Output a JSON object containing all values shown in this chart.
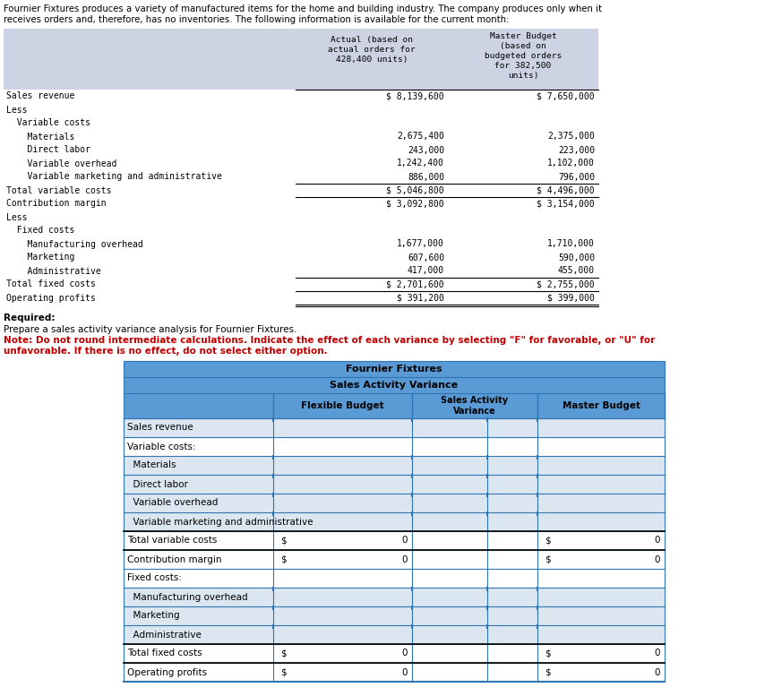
{
  "header_line1": "Fournier Fixtures produces a variety of manufactured items for the home and building industry. The company produces only when it",
  "header_line2": "receives orders and, therefore, has no inventories. The following information is available for the current month:",
  "top_table": {
    "col_header1": "Actual (based on\nactual orders for\n428,400 units)",
    "col_header2": "Master Budget\n(based on\nbudgeted orders\nfor 382,500\nunits)",
    "rows": [
      [
        "Sales revenue",
        "$ 8,139,600",
        "$ 7,650,000",
        true,
        false
      ],
      [
        "Less",
        "",
        "",
        false,
        false
      ],
      [
        "  Variable costs",
        "",
        "",
        false,
        false
      ],
      [
        "    Materials",
        "2,675,400",
        "2,375,000",
        false,
        false
      ],
      [
        "    Direct labor",
        "243,000",
        "223,000",
        false,
        false
      ],
      [
        "    Variable overhead",
        "1,242,400",
        "1,102,000",
        false,
        false
      ],
      [
        "    Variable marketing and administrative",
        "886,000",
        "796,000",
        false,
        false
      ],
      [
        "Total variable costs",
        "$ 5,046,800",
        "$ 4,496,000",
        true,
        false
      ],
      [
        "Contribution margin",
        "$ 3,092,800",
        "$ 3,154,000",
        true,
        false
      ],
      [
        "Less",
        "",
        "",
        false,
        false
      ],
      [
        "  Fixed costs",
        "",
        "",
        false,
        false
      ],
      [
        "    Manufacturing overhead",
        "1,677,000",
        "1,710,000",
        false,
        false
      ],
      [
        "    Marketing",
        "607,600",
        "590,000",
        false,
        false
      ],
      [
        "    Administrative",
        "417,000",
        "455,000",
        false,
        false
      ],
      [
        "Total fixed costs",
        "$ 2,701,600",
        "$ 2,755,000",
        true,
        false
      ],
      [
        "Operating profits",
        "$ 391,200",
        "$ 399,000",
        true,
        true
      ]
    ]
  },
  "required_text": "Required:",
  "prepare_text": "Prepare a sales activity variance analysis for Fournier Fixtures.",
  "note_text1": "Note: Do not round intermediate calculations. Indicate the effect of each variance by selecting \"F\" for favorable, or \"U\" for",
  "note_text2": "unfavorable. If there is no effect, do not select either option.",
  "bottom_table": {
    "title1": "Fournier Fixtures",
    "title2": "Sales Activity Variance",
    "rows": [
      [
        "Sales revenue",
        false,
        true
      ],
      [
        "Variable costs:",
        false,
        false
      ],
      [
        "  Materials",
        false,
        true
      ],
      [
        "  Direct labor",
        false,
        true
      ],
      [
        "  Variable overhead",
        false,
        true
      ],
      [
        "  Variable marketing and administrative",
        false,
        true
      ],
      [
        "Total variable costs",
        true,
        false
      ],
      [
        "Contribution margin",
        true,
        false
      ],
      [
        "Fixed costs:",
        false,
        false
      ],
      [
        "  Manufacturing overhead",
        false,
        true
      ],
      [
        "  Marketing",
        false,
        true
      ],
      [
        "  Administrative",
        false,
        true
      ],
      [
        "Total fixed costs",
        true,
        false
      ],
      [
        "Operating profits",
        true,
        false
      ]
    ]
  },
  "top_bg_color": "#cdd3e3",
  "bottom_header_bg": "#5b9bd5",
  "bottom_col_bg": "#5b9bd5",
  "bottom_alt_bg": "#dce6f1",
  "grid_color_dark": "#2e75b6",
  "grid_color_light": "#9dc3e6",
  "text_color_red": "#c00000",
  "bg_white": "#ffffff"
}
